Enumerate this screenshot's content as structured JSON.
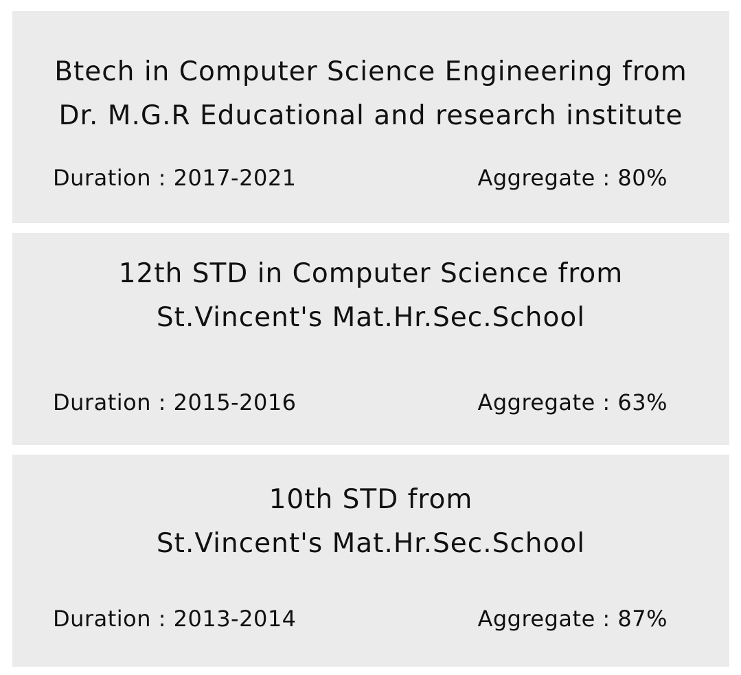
{
  "education": [
    {
      "title_line1": "Btech in Computer Science Engineering from",
      "title_line2": "Dr. M.G.R Educational and research institute",
      "duration": "Duration : 2017-2021",
      "aggregate": "Aggregate : 80%"
    },
    {
      "title_line1": "12th STD in Computer Science from",
      "title_line2": "St.Vincent's Mat.Hr.Sec.School",
      "duration": "Duration : 2015-2016",
      "aggregate": "Aggregate : 63%"
    },
    {
      "title_line1": "10th STD from",
      "title_line2": "St.Vincent's Mat.Hr.Sec.School",
      "duration": "Duration : 2013-2014",
      "aggregate": "Aggregate : 87%"
    }
  ],
  "colors": {
    "card_background": "#ebebeb",
    "page_background": "#ffffff",
    "text": "#111111"
  }
}
